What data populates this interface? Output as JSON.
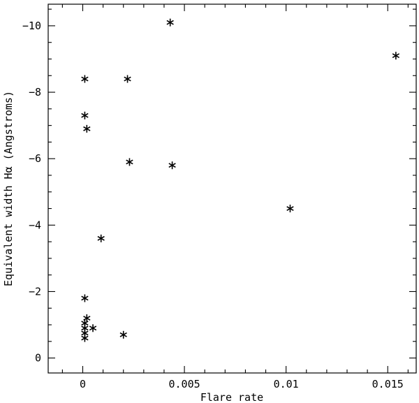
{
  "chart_data": {
    "type": "scatter",
    "title": "",
    "xlabel": "Flare rate",
    "ylabel": "Equivalent width Hα (Angstroms)",
    "xlim": [
      -0.0017,
      0.0164
    ],
    "ylim": [
      0.45,
      -10.65
    ],
    "x_ticks": [
      0,
      0.005,
      0.01,
      0.015
    ],
    "x_tick_labels": [
      "0",
      "0.005",
      "0.01",
      "0.015"
    ],
    "y_ticks": [
      0,
      -2,
      -4,
      -6,
      -8,
      -10
    ],
    "y_tick_labels": [
      "0",
      "−2",
      "−4",
      "−6",
      "−8",
      "−10"
    ],
    "marker": "asterisk",
    "grid": false,
    "points": [
      {
        "x": 0.0043,
        "y": -10.1
      },
      {
        "x": 0.0154,
        "y": -9.1
      },
      {
        "x": 0.0001,
        "y": -8.4
      },
      {
        "x": 0.0022,
        "y": -8.4
      },
      {
        "x": 0.0001,
        "y": -7.3
      },
      {
        "x": 0.0002,
        "y": -6.9
      },
      {
        "x": 0.0023,
        "y": -5.9
      },
      {
        "x": 0.0044,
        "y": -5.8
      },
      {
        "x": 0.0102,
        "y": -4.5
      },
      {
        "x": 0.0009,
        "y": -3.6
      },
      {
        "x": 0.0001,
        "y": -1.8
      },
      {
        "x": 0.0002,
        "y": -1.2
      },
      {
        "x": 0.0001,
        "y": -1.05
      },
      {
        "x": 0.0001,
        "y": -0.9
      },
      {
        "x": 0.0005,
        "y": -0.9
      },
      {
        "x": 0.0001,
        "y": -0.75
      },
      {
        "x": 0.0001,
        "y": -0.6
      },
      {
        "x": 0.002,
        "y": -0.7
      }
    ]
  }
}
